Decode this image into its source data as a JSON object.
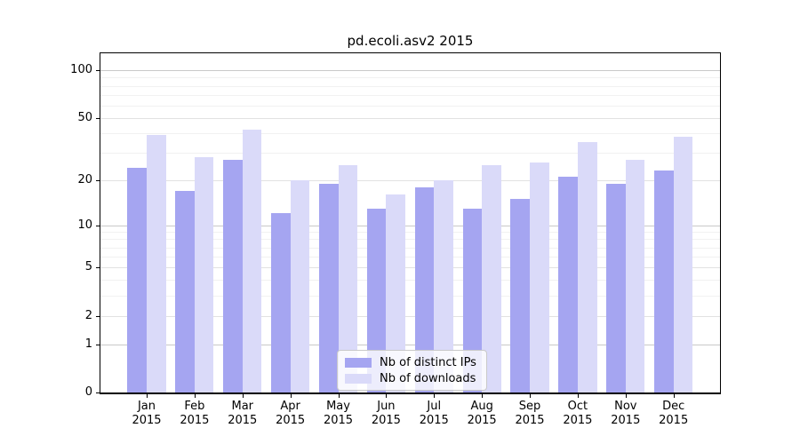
{
  "chart_data": {
    "type": "bar",
    "title": "pd.ecoli.asv2 2015",
    "categories": [
      "Jan",
      "Feb",
      "Mar",
      "Apr",
      "May",
      "Jun",
      "Jul",
      "Aug",
      "Sep",
      "Oct",
      "Nov",
      "Dec"
    ],
    "year": "2015",
    "series": [
      {
        "name": "Nb of distinct IPs",
        "color": "#a5a5f1",
        "values": [
          24,
          17,
          27,
          12,
          19,
          13,
          18,
          13,
          15,
          21,
          19,
          23
        ]
      },
      {
        "name": "Nb of downloads",
        "color": "#dadaf9",
        "values": [
          39,
          28,
          42,
          20,
          25,
          16,
          20,
          25,
          26,
          35,
          27,
          38
        ]
      }
    ],
    "xlabel": "",
    "ylabel": "",
    "yscale": "log1p",
    "ylim": [
      0,
      128
    ],
    "y_ticks": [
      100,
      50,
      20,
      10,
      5,
      2,
      1,
      0
    ],
    "grid": "on",
    "legend_position": "bottom-center",
    "colors": {
      "grid_major": "#c9c9c9",
      "grid_medium": "#e2e2e2",
      "grid_minor": "#f1f1f1",
      "spine": "#000000",
      "background": "#ffffff"
    }
  }
}
